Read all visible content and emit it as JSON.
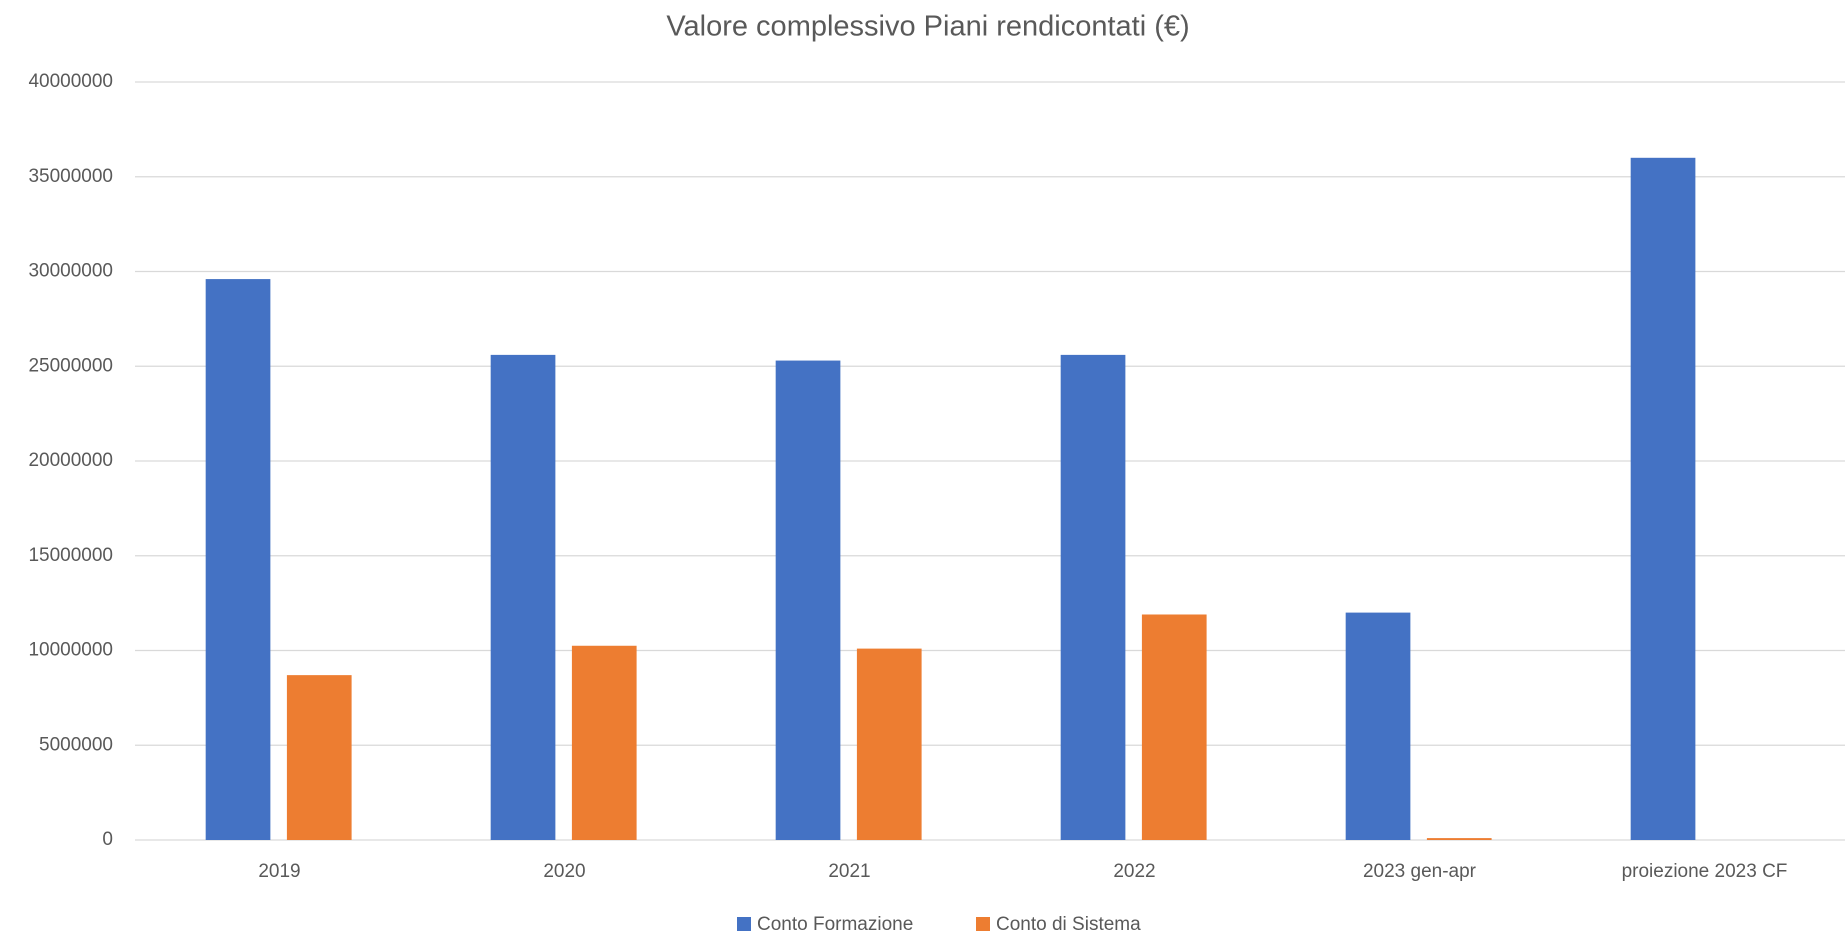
{
  "chart_data": {
    "type": "bar",
    "title": "Valore complessivo Piani rendicontati (€)",
    "categories": [
      "2019",
      "2020",
      "2021",
      "2022",
      "2023 gen-apr",
      "proiezione 2023 CF"
    ],
    "series": [
      {
        "name": "Conto Formazione",
        "color": "#4472c4",
        "values": [
          29600000,
          25600000,
          25300000,
          25600000,
          12000000,
          36000000
        ]
      },
      {
        "name": "Conto di Sistema",
        "color": "#ed7d31",
        "values": [
          8700000,
          10250000,
          10100000,
          11900000,
          100000,
          null
        ]
      }
    ],
    "ylim": [
      0,
      40000000
    ],
    "yticks": [
      0,
      5000000,
      10000000,
      15000000,
      20000000,
      25000000,
      30000000,
      35000000,
      40000000
    ],
    "grid": true,
    "legend": "bottom"
  }
}
